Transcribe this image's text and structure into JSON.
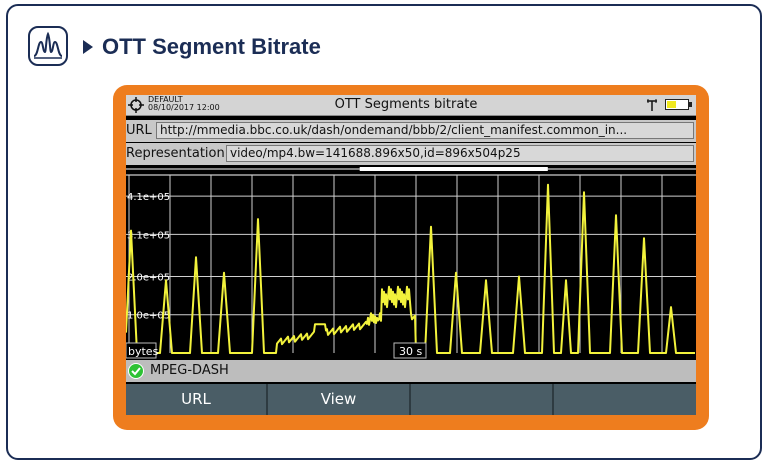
{
  "header": {
    "title": "OTT Segment Bitrate",
    "icon": "spectrum-icon",
    "accent": "#1b2d55"
  },
  "device": {
    "frame_color": "#ee7d1e",
    "profile_name": "DEFAULT",
    "datetime": "08/10/2017 12:00",
    "title": "OTT Segments bitrate",
    "url_label": "URL",
    "url_value": "http://mmedia.bbc.co.uk/dash/ondemand/bbb/2/client_manifest.common_in...",
    "representation_label": "Representation",
    "representation_value": "video/mp4.bw=141688.896x50,id=896x504p25",
    "battery_level": 0.45,
    "status": {
      "icon": "check-circle-icon",
      "text": "MPEG-DASH"
    },
    "softkeys": [
      "URL",
      "View",
      "",
      ""
    ]
  },
  "chart_data": {
    "type": "line",
    "ylabels": [
      "4.1e+05",
      "3.1e+05",
      "2.0e+05",
      "1.0e+05"
    ],
    "unit_label": "bytes",
    "time_label": "30 s",
    "grid": true,
    "line_color": "#f2f23c",
    "scrollbar_position": [
      0.41,
      0.74
    ],
    "series": [
      {
        "x": [
          0,
          1,
          2,
          3,
          4,
          5,
          6,
          7,
          8,
          9,
          10,
          11,
          12,
          13,
          14,
          15,
          16,
          17,
          18,
          19,
          20,
          21,
          22,
          23,
          24,
          25,
          26,
          27,
          28,
          29,
          30,
          31,
          32,
          33,
          34,
          35,
          36,
          37,
          38,
          39,
          40,
          41,
          42,
          43,
          44,
          45,
          46,
          47,
          48,
          49,
          50,
          51,
          52,
          53,
          54,
          55,
          56,
          57,
          58,
          59,
          60,
          61,
          62,
          63,
          64,
          65,
          66,
          67,
          68,
          69,
          70,
          71,
          72,
          73,
          74,
          75,
          76,
          77,
          78,
          79,
          80,
          81,
          82,
          83,
          84,
          85,
          86,
          87,
          88,
          89,
          90,
          91,
          92,
          93,
          94,
          95,
          96,
          97,
          98,
          99,
          100,
          101,
          102,
          103,
          104,
          105,
          106,
          107,
          108,
          109,
          110,
          111,
          112,
          113,
          114,
          115,
          116,
          117,
          118,
          119,
          120,
          121,
          122,
          123,
          124,
          125,
          126,
          127,
          128,
          129,
          130,
          131,
          132,
          133,
          134,
          135,
          136,
          137,
          138,
          139,
          140,
          141,
          142,
          143,
          144,
          145,
          146,
          147,
          148,
          149,
          150,
          151,
          152,
          153,
          154,
          155,
          156,
          157,
          158,
          159,
          160,
          161,
          162,
          163,
          164,
          165,
          166,
          167,
          168,
          169,
          170,
          171,
          172,
          173,
          174,
          175,
          176,
          177,
          178,
          179,
          180,
          181,
          182,
          183,
          184,
          185,
          186,
          187,
          188,
          189,
          190,
          191,
          192,
          193,
          194,
          195,
          196,
          197,
          198,
          199,
          200,
          201,
          202,
          203,
          204,
          205,
          206,
          207,
          208,
          209,
          210,
          211,
          212,
          213,
          214,
          215,
          216,
          217,
          218,
          219,
          220,
          221,
          222,
          223,
          224,
          225,
          226,
          227,
          228,
          229,
          230,
          231,
          232,
          233,
          234,
          235,
          236,
          237,
          238,
          239,
          240,
          241,
          242,
          243,
          244,
          245,
          246,
          247,
          248,
          249,
          250,
          251,
          252,
          253,
          254,
          255,
          256,
          257,
          258,
          259,
          260,
          261,
          262,
          263,
          264,
          265,
          266,
          267,
          268,
          269,
          270,
          271,
          272,
          273,
          274,
          275,
          276,
          277,
          278,
          279,
          280,
          281,
          282,
          283,
          284,
          285,
          286,
          287,
          288,
          289,
          290,
          291,
          292,
          293,
          294,
          295,
          296,
          297,
          298,
          299,
          300,
          301,
          302,
          303,
          304,
          305,
          306,
          307,
          308,
          309,
          310,
          311,
          312,
          313,
          314,
          315,
          316,
          317,
          318,
          319,
          320,
          321,
          322,
          323,
          324,
          325,
          326,
          327,
          328,
          329,
          330,
          331,
          332,
          333,
          334,
          335,
          336,
          337,
          338,
          339,
          340,
          341,
          342,
          343,
          344,
          345,
          346,
          347,
          348,
          349,
          350,
          351,
          352,
          353,
          354,
          355,
          356,
          357,
          358,
          359,
          360,
          361,
          362,
          363,
          364,
          365,
          366,
          367,
          368,
          369,
          370,
          371,
          372,
          373,
          374,
          375,
          376,
          377,
          378,
          379,
          380,
          381,
          382,
          383,
          384,
          385,
          386,
          387,
          388,
          389,
          390,
          391,
          392,
          393,
          394,
          395,
          396,
          397,
          398,
          399,
          400,
          401,
          402,
          403,
          404,
          405,
          406,
          407,
          408,
          409,
          410,
          411,
          412,
          413,
          414,
          415,
          416,
          417,
          418,
          419,
          420,
          421,
          422,
          423,
          424,
          425,
          426,
          427,
          428,
          429,
          430,
          431,
          432,
          433,
          434,
          435,
          436,
          437,
          438,
          439,
          440,
          441,
          442,
          443,
          444,
          445,
          446,
          447,
          448,
          449,
          450,
          451,
          452,
          453,
          454,
          455,
          456,
          457,
          458,
          459,
          460,
          461,
          462,
          463,
          464,
          465,
          466,
          467,
          468,
          469,
          470,
          471,
          472,
          473,
          474,
          475,
          476,
          477,
          478,
          479,
          480,
          481,
          482,
          483,
          484,
          485,
          486,
          487,
          488,
          489,
          490,
          491,
          492,
          493,
          494,
          495,
          496,
          497,
          498,
          499,
          500,
          501,
          502,
          503,
          504,
          505,
          506,
          507,
          508,
          509,
          510,
          511,
          512,
          513,
          514,
          515,
          516,
          517,
          518,
          519,
          520,
          521,
          522,
          523,
          524,
          525,
          526,
          527,
          528,
          529,
          530,
          531,
          532,
          533,
          534,
          535,
          536,
          537,
          538,
          539,
          540,
          541,
          542,
          543,
          544,
          545,
          546,
          547,
          548,
          549,
          550,
          551,
          552,
          553,
          554,
          555,
          556,
          557,
          558,
          559,
          560,
          561,
          562,
          563,
          564,
          565,
          566,
          567,
          568,
          569
        ],
        "peaks": [
          {
            "t": 5,
            "v": 320000.0,
            "w": 6
          },
          {
            "t": 40,
            "v": 190000.0,
            "w": 6
          },
          {
            "t": 70,
            "v": 250000.0,
            "w": 6
          },
          {
            "t": 98,
            "v": 210000.0,
            "w": 6
          },
          {
            "t": 132,
            "v": 350000.0,
            "w": 6
          },
          {
            "t": 305,
            "v": 330000.0,
            "w": 6
          },
          {
            "t": 330,
            "v": 210000.0,
            "w": 6
          },
          {
            "t": 360,
            "v": 190000.0,
            "w": 6
          },
          {
            "t": 393,
            "v": 200000.0,
            "w": 6
          },
          {
            "t": 422,
            "v": 440000.0,
            "w": 6
          },
          {
            "t": 440,
            "v": 190000.0,
            "w": 5
          },
          {
            "t": 458,
            "v": 420000.0,
            "w": 6
          },
          {
            "t": 490,
            "v": 360000.0,
            "w": 6
          },
          {
            "t": 518,
            "v": 300000.0,
            "w": 6
          },
          {
            "t": 545,
            "v": 120000.0,
            "w": 5
          }
        ]
      }
    ]
  }
}
